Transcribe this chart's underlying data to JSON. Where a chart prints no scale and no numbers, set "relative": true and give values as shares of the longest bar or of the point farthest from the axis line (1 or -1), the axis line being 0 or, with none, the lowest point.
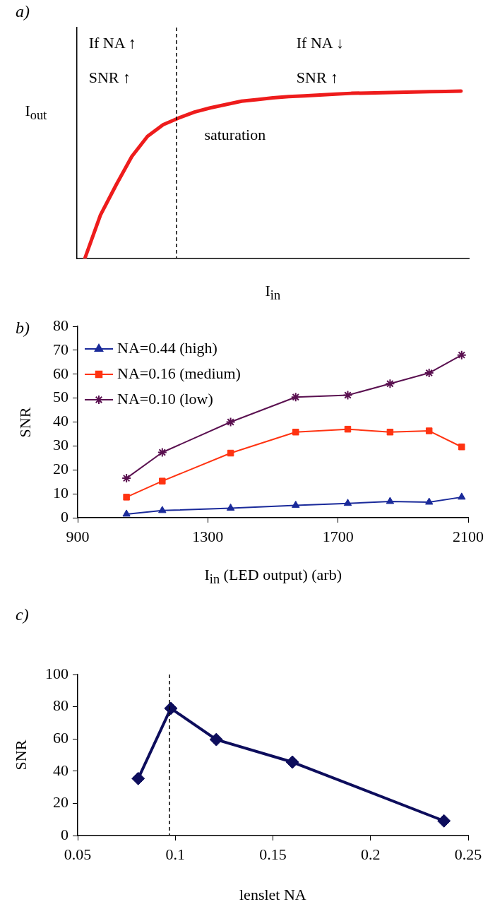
{
  "chart_data": [
    {
      "type": "line",
      "title": "a)",
      "xlabel": "I$_{in}$",
      "ylabel": "I$_{out}$",
      "relative": true,
      "categories": [
        null,
        null,
        null,
        null,
        null,
        null,
        null,
        null,
        null,
        null,
        null,
        null,
        null,
        null,
        null,
        null,
        null,
        null,
        null,
        null,
        null,
        null,
        null,
        null,
        null
      ],
      "series": [
        {
          "color": "#ee1c1c",
          "values": [
            0,
            0.26,
            0.44,
            0.61,
            0.73,
            0.8,
            0.84,
            0.875,
            0.9,
            0.92,
            0.94,
            0.95,
            0.96,
            0.967,
            0.972,
            0.977,
            0.982,
            0.987,
            0.989,
            0.991,
            0.993,
            0.995,
            0.997,
            0.998,
            1
          ]
        }
      ],
      "ref_lines": [
        {
          "axis": "x",
          "line_style": "dashed",
          "color": "#000000"
        }
      ],
      "annotations": [
        "If NA ↑",
        "SNR ↑",
        "If NA ↓",
        "SNR ↑",
        "saturation"
      ]
    },
    {
      "type": "line",
      "title": "b)",
      "xlabel": "I$_{in}$ (LED output) (arb)",
      "ylabel": "SNR",
      "xlim": [
        900,
        2100
      ],
      "xticks": [
        900,
        1300,
        1700,
        2100
      ],
      "ylim": [
        0,
        80
      ],
      "yticks": [
        0,
        10,
        20,
        30,
        40,
        50,
        60,
        70,
        80
      ],
      "legend": "top left",
      "x": [
        1050,
        1160,
        1370,
        1570,
        1730,
        1860,
        1980,
        2080
      ],
      "series": [
        {
          "name": "NA=0.44 (high)",
          "color": "#1a2a9a",
          "marker": "triangle",
          "values": [
            1.5,
            3,
            4,
            5.2,
            6,
            6.8,
            6.5,
            8.6
          ]
        },
        {
          "name": "NA=0.16 (medium)",
          "color": "#ff3311",
          "marker": "square",
          "values": [
            8.6,
            15.3,
            27,
            35.8,
            37,
            35.8,
            36.3,
            29.6
          ]
        },
        {
          "name": "NA=0.10 (low)",
          "color": "#5a1050",
          "marker": "cross",
          "values": [
            16.5,
            27.3,
            40,
            50.4,
            51.2,
            56,
            60.5,
            68
          ]
        }
      ]
    },
    {
      "type": "line",
      "title": "c)",
      "xlabel": "lenslet NA",
      "ylabel": "SNR",
      "xlim": [
        0.05,
        0.25
      ],
      "xticks": [
        0.05,
        0.1,
        0.15,
        0.2,
        0.25
      ],
      "ylim": [
        0,
        100
      ],
      "yticks": [
        0,
        20,
        40,
        60,
        80,
        100
      ],
      "marker": "diamond",
      "x": [
        0.081,
        0.0977,
        0.121,
        0.16,
        0.2376
      ],
      "series": [
        {
          "color": "#0d0d5c",
          "values": [
            35.4,
            79,
            59.6,
            45.6,
            9.1
          ]
        }
      ],
      "ref_lines": [
        {
          "axis": "x",
          "value": 0.097,
          "line_style": "dashed",
          "color": "#000000"
        }
      ]
    }
  ]
}
